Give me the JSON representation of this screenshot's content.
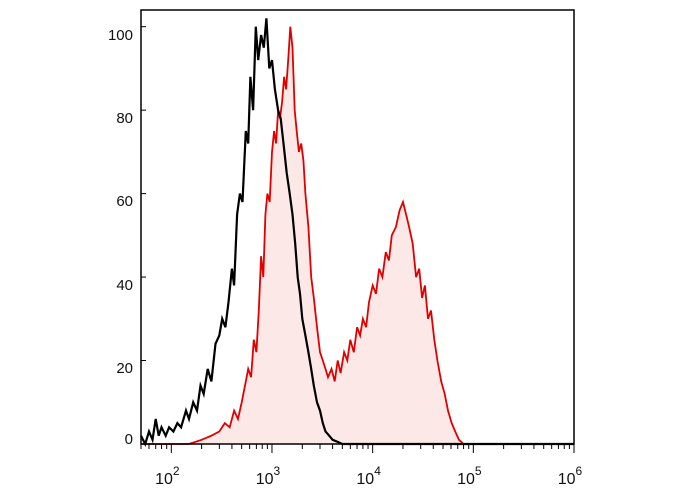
{
  "chart_data": {
    "type": "area",
    "xscale": "log",
    "xlim": [
      50,
      1000000
    ],
    "ylim": [
      0,
      104
    ],
    "grid": false,
    "ytick_labels": [
      "0",
      "20",
      "40",
      "60",
      "80",
      "100"
    ],
    "ytick_values": [
      0,
      20,
      40,
      60,
      80,
      100
    ],
    "xtick_values": [
      100,
      1000,
      10000,
      100000,
      1000000
    ],
    "xtick_labels": [
      {
        "base": "10",
        "exp": "2"
      },
      {
        "base": "10",
        "exp": "3"
      },
      {
        "base": "10",
        "exp": "4"
      },
      {
        "base": "10",
        "exp": "5"
      },
      {
        "base": "10",
        "exp": "6"
      }
    ],
    "series": [
      {
        "color": "#000000",
        "fill": "none",
        "x": [
          50,
          55,
          60,
          65,
          70,
          75,
          80,
          88,
          95,
          105,
          115,
          125,
          140,
          150,
          165,
          180,
          195,
          210,
          230,
          250,
          275,
          300,
          320,
          345,
          370,
          400,
          420,
          450,
          480,
          510,
          550,
          580,
          610,
          650,
          690,
          730,
          780,
          830,
          880,
          940,
          1000,
          1070,
          1150,
          1220,
          1300,
          1400,
          1500,
          1600,
          1700,
          1800,
          1900,
          2000,
          2150,
          2300,
          2450,
          2600,
          2800,
          3000,
          3200,
          3400,
          3700,
          4000,
          4500,
          5000,
          7000,
          10000,
          100000,
          1000000
        ],
        "y": [
          2,
          0,
          3,
          1,
          6,
          2,
          4,
          2,
          4,
          3,
          5,
          4,
          8,
          6,
          10,
          8,
          14,
          12,
          18,
          15,
          24,
          26,
          30,
          28,
          34,
          42,
          38,
          55,
          60,
          58,
          75,
          72,
          88,
          80,
          100,
          92,
          98,
          95,
          102,
          90,
          92,
          85,
          80,
          78,
          72,
          65,
          60,
          55,
          48,
          40,
          36,
          30,
          26,
          22,
          18,
          14,
          10,
          8,
          5,
          3,
          2,
          1,
          0.5,
          0,
          0,
          0,
          0,
          0
        ]
      },
      {
        "color": "#e00000",
        "fill": "#fde8e8",
        "x": [
          50,
          150,
          200,
          250,
          300,
          340,
          380,
          420,
          460,
          500,
          540,
          580,
          620,
          660,
          700,
          740,
          780,
          820,
          860,
          900,
          950,
          1000,
          1050,
          1100,
          1150,
          1200,
          1260,
          1320,
          1380,
          1450,
          1520,
          1600,
          1680,
          1760,
          1850,
          1950,
          2050,
          2150,
          2300,
          2450,
          2600,
          2800,
          3000,
          3200,
          3400,
          3600,
          3900,
          4200,
          4500,
          4800,
          5200,
          5600,
          6000,
          6500,
          7000,
          7500,
          8000,
          8600,
          9200,
          10000,
          10800,
          11600,
          12500,
          13500,
          14500,
          15500,
          17000,
          18500,
          20000,
          21500,
          23000,
          25000,
          27000,
          29000,
          31000,
          33000,
          35500,
          38000,
          41000,
          44000,
          48000,
          52000,
          56000,
          61000,
          66000,
          72000,
          80000,
          90000,
          100000,
          120000,
          200000,
          1000000
        ],
        "y": [
          0,
          0,
          1,
          2,
          3,
          5,
          4,
          8,
          6,
          10,
          14,
          18,
          16,
          25,
          22,
          32,
          45,
          40,
          55,
          60,
          58,
          70,
          75,
          72,
          80,
          78,
          82,
          88,
          85,
          92,
          100,
          95,
          80,
          75,
          70,
          72,
          68,
          60,
          52,
          40,
          35,
          28,
          22,
          20,
          18,
          16,
          18,
          15,
          20,
          17,
          22,
          20,
          25,
          22,
          28,
          26,
          30,
          28,
          34,
          38,
          36,
          42,
          40,
          46,
          44,
          50,
          52,
          56,
          58,
          55,
          52,
          48,
          40,
          42,
          35,
          38,
          30,
          32,
          25,
          20,
          15,
          12,
          8,
          5,
          3,
          1,
          0,
          0,
          0,
          0,
          0,
          0
        ]
      }
    ]
  }
}
